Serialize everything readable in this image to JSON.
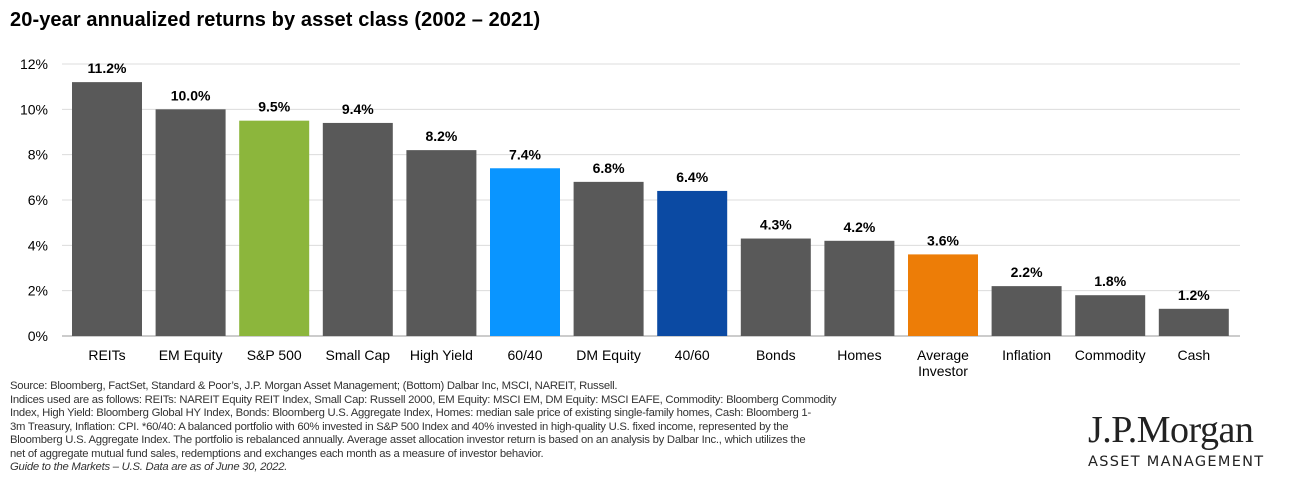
{
  "title": "20-year annualized returns by asset class (2002 – 2021)",
  "chart_data": {
    "type": "bar",
    "categories": [
      "REITs",
      "EM Equity",
      "S&P 500",
      "Small Cap",
      "High Yield",
      "60/40",
      "DM Equity",
      "40/60",
      "Bonds",
      "Homes",
      "Average Investor",
      "Inflation",
      "Commodity",
      "Cash"
    ],
    "category_lines": [
      [
        "REITs"
      ],
      [
        "EM Equity"
      ],
      [
        "S&P 500"
      ],
      [
        "Small Cap"
      ],
      [
        "High Yield"
      ],
      [
        "60/40"
      ],
      [
        "DM Equity"
      ],
      [
        "40/60"
      ],
      [
        "Bonds"
      ],
      [
        "Homes"
      ],
      [
        "Average",
        "Investor"
      ],
      [
        "Inflation"
      ],
      [
        "Commodity"
      ],
      [
        "Cash"
      ]
    ],
    "values": [
      11.2,
      10.0,
      9.5,
      9.4,
      8.2,
      7.4,
      6.8,
      6.4,
      4.3,
      4.2,
      3.6,
      2.2,
      1.8,
      1.2
    ],
    "value_labels": [
      "11.2%",
      "10.0%",
      "9.5%",
      "9.4%",
      "8.2%",
      "7.4%",
      "6.8%",
      "6.4%",
      "4.3%",
      "4.2%",
      "3.6%",
      "2.2%",
      "1.8%",
      "1.2%"
    ],
    "colors": [
      "#595959",
      "#595959",
      "#8cb63c",
      "#595959",
      "#595959",
      "#0a95ff",
      "#595959",
      "#0b4aa3",
      "#595959",
      "#595959",
      "#ed7d07",
      "#595959",
      "#595959",
      "#595959"
    ],
    "ylim": [
      0,
      12
    ],
    "yticks": [
      0,
      2,
      4,
      6,
      8,
      10,
      12
    ],
    "ytick_labels": [
      "0%",
      "2%",
      "4%",
      "6%",
      "8%",
      "10%",
      "12%"
    ],
    "grid": true
  },
  "footnotes": [
    "Source: Bloomberg, FactSet, Standard & Poor’s, J.P. Morgan Asset Management; (Bottom) Dalbar Inc, MSCI, NAREIT, Russell.",
    "Indices used are as follows: REITs: NAREIT Equity REIT Index, Small Cap: Russell 2000, EM Equity: MSCI EM, DM Equity: MSCI EAFE, Commodity: Bloomberg Commodity",
    "Index, High Yield: Bloomberg Global HY Index, Bonds: Bloomberg U.S. Aggregate Index, Homes: median sale price of existing single-family homes, Cash: Bloomberg 1-",
    "3m Treasury, Inflation: CPI. *60/40: A balanced portfolio with 60% invested in S&P 500 Index and 40% invested in high-quality U.S. fixed income, represented by the",
    "Bloomberg U.S. Aggregate Index. The portfolio is rebalanced annually. Average asset allocation investor return is based on an analysis by Dalbar Inc., which utilizes the",
    "net of aggregate mutual fund sales, redemptions and exchanges each month as a measure of investor behavior."
  ],
  "footnote_italic": "Guide to the Markets – U.S. Data are as of June 30, 2022.",
  "logo": {
    "brand": "J.P.Morgan",
    "sub": "ASSET MANAGEMENT"
  }
}
